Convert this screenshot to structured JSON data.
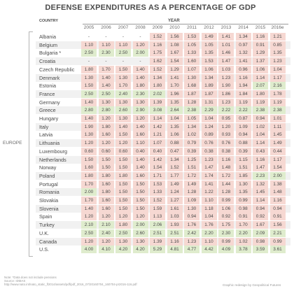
{
  "colors": {
    "green": "#dfeccd",
    "red": "#f6d8d2",
    "neutral": "#ffffff",
    "text": "#4a4a4a"
  },
  "chart_data": {
    "type": "table",
    "title": "DEFENSE EXPENDITURES AS A PERCENTAGE OF GDP",
    "row_header": "COUNTRY",
    "column_header": "YEAR",
    "region_label": "EUROPE",
    "years": [
      "2005",
      "2006",
      "2007",
      "2008",
      "2009",
      "2010",
      "2011",
      "2012",
      "2013",
      "2014",
      "2015",
      "2016e"
    ],
    "rows": [
      {
        "country": "Albania",
        "values": [
          "-",
          "-",
          "-",
          "-",
          "1.52",
          "1.56",
          "1.53",
          "1.49",
          "1.41",
          "1.34",
          "1.16",
          "1.21"
        ]
      },
      {
        "country": "Belgium",
        "values": [
          "1.10",
          "1.10",
          "1.10",
          "1.20",
          "1.16",
          "1.08",
          "1.05",
          "1.05",
          "1.01",
          "0.97",
          "0.91",
          "0.85"
        ]
      },
      {
        "country": "Bulgaria *",
        "values": [
          "2.50",
          "2.30",
          "2.50",
          "2.00",
          "1.75",
          "1.67",
          "1.33",
          "1.35",
          "1.46",
          "1.32",
          "1.29",
          "1.35"
        ]
      },
      {
        "country": "Croatia",
        "values": [
          "-",
          "-",
          "-",
          "-",
          "1.62",
          "1.54",
          "1.60",
          "1.53",
          "1.47",
          "1.41",
          "1.37",
          "1.23"
        ]
      },
      {
        "country": "Czech Republic",
        "values": [
          "1.80",
          "1.70",
          "1.50",
          "1.40",
          "1.52",
          "1.29",
          "1.07",
          "1.06",
          "1.03",
          "0.96",
          "1.06",
          "1.04"
        ]
      },
      {
        "country": "Denmark",
        "values": [
          "1.30",
          "1.40",
          "1.30",
          "1.40",
          "1.34",
          "1.41",
          "1.30",
          "1.34",
          "1.23",
          "1.16",
          "1.14",
          "1.17"
        ]
      },
      {
        "country": "Estonia",
        "values": [
          "1.50",
          "1.40",
          "1.70",
          "1.80",
          "1.80",
          "1.70",
          "1.68",
          "1.89",
          "1.90",
          "1.94",
          "2.07",
          "2.16"
        ]
      },
      {
        "country": "France",
        "values": [
          "2.50",
          "2.50",
          "2.40",
          "2.30",
          "2.02",
          "1.96",
          "1.87",
          "1.87",
          "1.86",
          "1.84",
          "1.80",
          "1.78"
        ]
      },
      {
        "country": "Germany",
        "values": [
          "1.40",
          "1.30",
          "1.30",
          "1.30",
          "1.39",
          "1.35",
          "1.28",
          "1.31",
          "1.23",
          "1.19",
          "1.19",
          "1.19"
        ]
      },
      {
        "country": "Greece",
        "values": [
          "2.80",
          "2.80",
          "2.60",
          "2.90",
          "3.08",
          "2.64",
          "2.38",
          "2.29",
          "2.22",
          "2.22",
          "2.38",
          "2.38"
        ]
      },
      {
        "country": "Hungary",
        "values": [
          "1.40",
          "1.20",
          "1.30",
          "1.20",
          "1.14",
          "1.04",
          "1.05",
          "1.04",
          "0.95",
          "0.87",
          "0.94",
          "1.01"
        ]
      },
      {
        "country": "Italy",
        "values": [
          "1.90",
          "1.80",
          "1.40",
          "1.40",
          "1.42",
          "1.35",
          "1.34",
          "1.24",
          "1.20",
          "1.09",
          "1.02",
          "1.11"
        ]
      },
      {
        "country": "Latvia",
        "values": [
          "1.30",
          "1.60",
          "1.50",
          "1.60",
          "1.21",
          "1.06",
          "1.02",
          "0.89",
          "0.93",
          "0.94",
          "1.04",
          "1.45"
        ]
      },
      {
        "country": "Lithuania",
        "values": [
          "1.20",
          "1.20",
          "1.20",
          "1.10",
          "1.07",
          "0.88",
          "0.79",
          "0.76",
          "0.76",
          "0.88",
          "1.14",
          "1.49"
        ]
      },
      {
        "country": "Luxembourg",
        "values": [
          "0.60",
          "0.60",
          "0.60",
          "0.40",
          "0.40",
          "0.47",
          "0.39",
          "0.38",
          "0.38",
          "0.39",
          "0.43",
          "0.44"
        ]
      },
      {
        "country": "Netherlands",
        "values": [
          "1.50",
          "1.50",
          "1.50",
          "1.40",
          "1.42",
          "1.34",
          "1.25",
          "1.23",
          "1.16",
          "1.15",
          "1.16",
          "1.17"
        ]
      },
      {
        "country": "Norway",
        "values": [
          "1.60",
          "1.50",
          "1.50",
          "1.40",
          "1.54",
          "1.52",
          "1.51",
          "1.47",
          "1.48",
          "1.51",
          "1.47",
          "1.54"
        ]
      },
      {
        "country": "Poland",
        "values": [
          "1.80",
          "1.80",
          "1.80",
          "1.60",
          "1.71",
          "1.77",
          "1.72",
          "1.74",
          "1.72",
          "1.85",
          "2.23",
          "2.00"
        ]
      },
      {
        "country": "Portugal",
        "values": [
          "1.70",
          "1.60",
          "1.50",
          "1.50",
          "1.53",
          "1.49",
          "1.49",
          "1.41",
          "1.44",
          "1.30",
          "1.32",
          "1.38"
        ]
      },
      {
        "country": "Romania",
        "values": [
          "2.00",
          "1.80",
          "1.50",
          "1.50",
          "1.33",
          "1.24",
          "1.28",
          "1.22",
          "1.28",
          "1.35",
          "1.45",
          "1.48"
        ]
      },
      {
        "country": "Slovakia",
        "values": [
          "1.70",
          "1.60",
          "1.50",
          "1.50",
          "1.52",
          "1.27",
          "1.09",
          "1.10",
          "0.99",
          "0.99",
          "1.14",
          "1.16"
        ]
      },
      {
        "country": "Slovenia",
        "values": [
          "1.40",
          "1.60",
          "1.50",
          "1.50",
          "1.59",
          "1.61",
          "1.30",
          "1.18",
          "1.06",
          "0.98",
          "0.94",
          "0.94"
        ]
      },
      {
        "country": "Spain",
        "values": [
          "1.20",
          "1.20",
          "1.20",
          "1.20",
          "1.13",
          "1.03",
          "0.94",
          "1.04",
          "0.92",
          "0.91",
          "0.92",
          "0.91"
        ]
      },
      {
        "country": "Turkey",
        "values": [
          "2.10",
          "2.10",
          "1.80",
          "2.00",
          "2.06",
          "1.93",
          "1.76",
          "1.76",
          "1.75",
          "1.70",
          "1.67",
          "1.56"
        ]
      },
      {
        "country": "U.K.",
        "values": [
          "2.50",
          "2.40",
          "2.50",
          "2.60",
          "2.51",
          "2.51",
          "2.42",
          "2.20",
          "2.30",
          "2.20",
          "2.09",
          "2.21"
        ]
      },
      {
        "country": "Canada",
        "values": [
          "1.20",
          "1.20",
          "1.30",
          "1.30",
          "1.39",
          "1.16",
          "1.23",
          "1.10",
          "0.99",
          "1.02",
          "0.98",
          "0.99"
        ]
      },
      {
        "country": "U.S.",
        "values": [
          "4.00",
          "4.10",
          "4.20",
          "4.20",
          "5.29",
          "4.81",
          "4.77",
          "4.42",
          "4.09",
          "3.78",
          "3.59",
          "3.61"
        ]
      }
    ],
    "row_tones": [
      [
        "n",
        "n",
        "n",
        "n",
        "r",
        "r",
        "r",
        "r",
        "r",
        "r",
        "r",
        "r"
      ],
      [
        "r",
        "r",
        "r",
        "r",
        "r",
        "r",
        "r",
        "r",
        "r",
        "r",
        "r",
        "r"
      ],
      [
        "g",
        "g",
        "g",
        "g",
        "r",
        "r",
        "r",
        "r",
        "r",
        "r",
        "r",
        "r"
      ],
      [
        "n",
        "n",
        "n",
        "n",
        "r",
        "r",
        "r",
        "r",
        "r",
        "r",
        "r",
        "r"
      ],
      [
        "r",
        "r",
        "r",
        "r",
        "r",
        "r",
        "r",
        "r",
        "r",
        "r",
        "r",
        "r"
      ],
      [
        "r",
        "r",
        "r",
        "r",
        "r",
        "r",
        "r",
        "r",
        "r",
        "r",
        "r",
        "r"
      ],
      [
        "r",
        "r",
        "r",
        "r",
        "r",
        "r",
        "r",
        "r",
        "r",
        "r",
        "g",
        "g"
      ],
      [
        "g",
        "g",
        "g",
        "g",
        "g",
        "r",
        "r",
        "r",
        "r",
        "r",
        "r",
        "r"
      ],
      [
        "r",
        "r",
        "r",
        "r",
        "r",
        "r",
        "r",
        "r",
        "r",
        "r",
        "r",
        "r"
      ],
      [
        "g",
        "g",
        "g",
        "g",
        "g",
        "g",
        "g",
        "g",
        "g",
        "g",
        "g",
        "g"
      ],
      [
        "r",
        "r",
        "r",
        "r",
        "r",
        "r",
        "r",
        "r",
        "r",
        "r",
        "r",
        "r"
      ],
      [
        "r",
        "r",
        "r",
        "r",
        "r",
        "r",
        "r",
        "r",
        "r",
        "r",
        "r",
        "r"
      ],
      [
        "r",
        "r",
        "r",
        "r",
        "r",
        "r",
        "r",
        "r",
        "r",
        "r",
        "r",
        "r"
      ],
      [
        "r",
        "r",
        "r",
        "r",
        "r",
        "r",
        "r",
        "r",
        "r",
        "r",
        "r",
        "r"
      ],
      [
        "r",
        "r",
        "r",
        "r",
        "r",
        "r",
        "r",
        "r",
        "r",
        "r",
        "r",
        "r"
      ],
      [
        "r",
        "r",
        "r",
        "r",
        "r",
        "r",
        "r",
        "r",
        "r",
        "r",
        "r",
        "r"
      ],
      [
        "r",
        "r",
        "r",
        "r",
        "r",
        "r",
        "r",
        "r",
        "r",
        "r",
        "r",
        "r"
      ],
      [
        "r",
        "r",
        "r",
        "r",
        "r",
        "r",
        "r",
        "r",
        "r",
        "r",
        "g",
        "g"
      ],
      [
        "r",
        "r",
        "r",
        "r",
        "r",
        "r",
        "r",
        "r",
        "r",
        "r",
        "r",
        "r"
      ],
      [
        "g",
        "r",
        "r",
        "r",
        "r",
        "r",
        "r",
        "r",
        "r",
        "r",
        "r",
        "r"
      ],
      [
        "r",
        "r",
        "r",
        "r",
        "r",
        "r",
        "r",
        "r",
        "r",
        "r",
        "r",
        "r"
      ],
      [
        "r",
        "r",
        "r",
        "r",
        "r",
        "r",
        "r",
        "r",
        "r",
        "r",
        "r",
        "r"
      ],
      [
        "r",
        "r",
        "r",
        "r",
        "r",
        "r",
        "r",
        "r",
        "r",
        "r",
        "r",
        "r"
      ],
      [
        "g",
        "g",
        "r",
        "g",
        "g",
        "r",
        "r",
        "r",
        "r",
        "r",
        "r",
        "r"
      ],
      [
        "g",
        "g",
        "g",
        "g",
        "g",
        "g",
        "g",
        "g",
        "g",
        "g",
        "g",
        "g"
      ],
      [
        "r",
        "r",
        "r",
        "r",
        "r",
        "r",
        "r",
        "r",
        "r",
        "r",
        "r",
        "r"
      ],
      [
        "g",
        "g",
        "g",
        "g",
        "g",
        "g",
        "g",
        "g",
        "g",
        "g",
        "g",
        "g"
      ]
    ]
  },
  "footnote": {
    "note": "Note: *Data does not include pensions",
    "source_label": "Source: IDMAS",
    "source_url": "http://www.nato.int/nato_static_fl2014/assets/pdf/pdf_2016_07/20160704_160704-pr2016-116.pdf",
    "credit": "Graphic redesign by Geopolitical Futures"
  }
}
